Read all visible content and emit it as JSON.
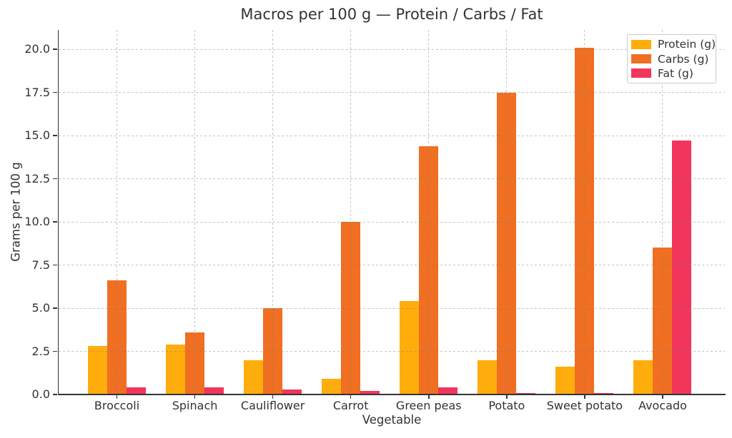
{
  "chart_data": {
    "type": "bar",
    "title": "Macros per 100 g — Protein / Carbs / Fat",
    "xlabel": "Vegetable",
    "ylabel": "Grams per 100 g",
    "categories": [
      "Broccoli",
      "Spinach",
      "Cauliflower",
      "Carrot",
      "Green peas",
      "Potato",
      "Sweet potato",
      "Avocado"
    ],
    "series": [
      {
        "name": "Protein (g)",
        "color": "#FFAD0D",
        "values": [
          2.8,
          2.9,
          2.0,
          0.9,
          5.4,
          2.0,
          1.6,
          2.0
        ]
      },
      {
        "name": "Carbs (g)",
        "color": "#F06F22",
        "values": [
          6.6,
          3.6,
          5.0,
          10.0,
          14.4,
          17.5,
          20.1,
          8.5
        ]
      },
      {
        "name": "Fat (g)",
        "color": "#F2355B",
        "values": [
          0.4,
          0.4,
          0.3,
          0.2,
          0.4,
          0.1,
          0.1,
          14.7
        ]
      }
    ],
    "ylim": [
      0,
      21.1
    ],
    "yticks": [
      0.0,
      2.5,
      5.0,
      7.5,
      10.0,
      12.5,
      15.0,
      17.5,
      20.0
    ],
    "grid": true,
    "grid_style": "dashed",
    "legend_position": "upper right",
    "colors": {
      "axis": "#333333",
      "text": "#333333",
      "grid": "#c2c2c2",
      "legend_border": "#cccccc",
      "background": "#ffffff"
    }
  }
}
